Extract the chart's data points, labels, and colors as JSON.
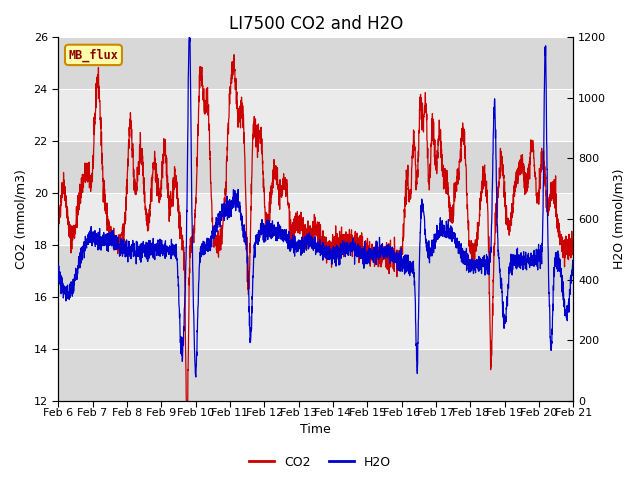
{
  "title": "LI7500 CO2 and H2O",
  "xlabel": "Time",
  "ylabel_left": "CO2 (mmol/m3)",
  "ylabel_right": "H2O (mmol/m3)",
  "ylim_left": [
    12,
    26
  ],
  "ylim_right": [
    0,
    1200
  ],
  "yticks_left": [
    12,
    14,
    16,
    18,
    20,
    22,
    24,
    26
  ],
  "yticks_right": [
    0,
    200,
    400,
    600,
    800,
    1000,
    1200
  ],
  "xtick_labels": [
    "Feb 6",
    "Feb 7",
    "Feb 8",
    "Feb 9",
    "Feb 10",
    "Feb 11",
    "Feb 12",
    "Feb 13",
    "Feb 14",
    "Feb 15",
    "Feb 16",
    "Feb 17",
    "Feb 18",
    "Feb 19",
    "Feb 20",
    "Feb 21"
  ],
  "co2_color": "#cc0000",
  "h2o_color": "#0000cc",
  "fig_bg_color": "#ffffff",
  "plot_bg_color": "#ffffff",
  "band_color_dark": "#d8d8d8",
  "band_color_light": "#ebebeb",
  "annotation_text": "MB_flux",
  "annotation_bg": "#ffffaa",
  "annotation_border": "#cc8800",
  "legend_co2": "CO2",
  "legend_h2o": "H2O",
  "title_fontsize": 12,
  "axis_fontsize": 9,
  "tick_fontsize": 8
}
